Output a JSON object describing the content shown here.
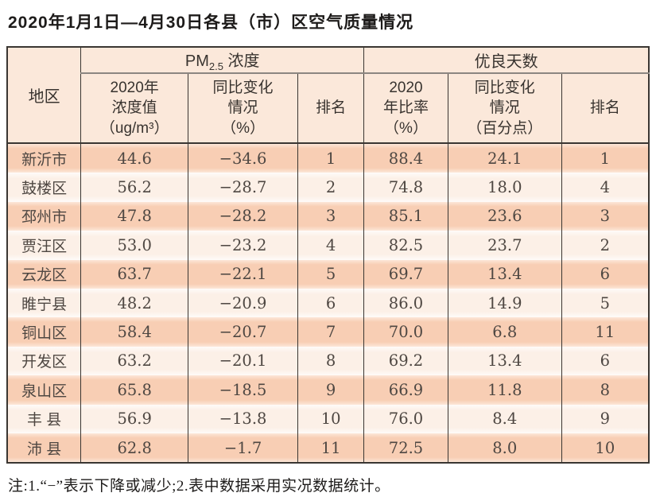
{
  "title": "2020年1月1日—4月30日各县（市）区空气质量情况",
  "footnote": "注:1.“−”表示下降或减少;2.表中数据采用实况数据统计。",
  "header": {
    "corner": "地区",
    "pm_base": "PM",
    "pm_sub": "2.5",
    "pm_rest": " 浓度",
    "group_days": "优良天数",
    "sub": [
      "2020年\n浓度值\n（ug/m³）",
      "同比变化\n情况\n（%）",
      "排名",
      "2020\n年比率\n（%）",
      "同比变化\n情况\n（百分点）",
      "排名"
    ]
  },
  "colors": {
    "header_bg": "#fbe8da",
    "row_odd_bg": "#f8ceb4",
    "row_even_bg": "#fcf0e7",
    "border": "#3a3632",
    "group_underline": "#8b8681",
    "text": "#4e4742"
  },
  "chart_data": {
    "type": "table",
    "title": "2020年1月1日—4月30日各县（市）区空气质量情况",
    "column_groups": [
      "地区",
      "PM2.5浓度",
      "优良天数"
    ],
    "columns": [
      "地区",
      "PM2.5浓度 2020年浓度值（ug/m³）",
      "PM2.5浓度 同比变化情况（%）",
      "PM2.5浓度 排名",
      "优良天数 2020年比率（%）",
      "优良天数 同比变化情况（百分点）",
      "优良天数 排名"
    ],
    "rows": [
      [
        "新沂市",
        "44.6",
        "−34.6",
        "1",
        "88.4",
        "24.1",
        "1"
      ],
      [
        "鼓楼区",
        "56.2",
        "−28.7",
        "2",
        "74.8",
        "18.0",
        "4"
      ],
      [
        "邳州市",
        "47.8",
        "−28.2",
        "3",
        "85.1",
        "23.6",
        "3"
      ],
      [
        "贾汪区",
        "53.0",
        "−23.2",
        "4",
        "82.5",
        "23.7",
        "2"
      ],
      [
        "云龙区",
        "63.7",
        "−22.1",
        "5",
        "69.7",
        "13.4",
        "6"
      ],
      [
        "睢宁县",
        "48.2",
        "−20.9",
        "6",
        "86.0",
        "14.9",
        "5"
      ],
      [
        "铜山区",
        "58.4",
        "−20.7",
        "7",
        "70.0",
        "6.8",
        "11"
      ],
      [
        "开发区",
        "63.2",
        "−20.1",
        "8",
        "69.2",
        "13.4",
        "6"
      ],
      [
        "泉山区",
        "65.8",
        "−18.5",
        "9",
        "66.9",
        "11.8",
        "8"
      ],
      [
        "丰 县",
        "56.9",
        "−13.8",
        "10",
        "76.0",
        "8.4",
        "9"
      ],
      [
        "沛 县",
        "62.8",
        "−1.7",
        "11",
        "72.5",
        "8.0",
        "10"
      ]
    ]
  }
}
